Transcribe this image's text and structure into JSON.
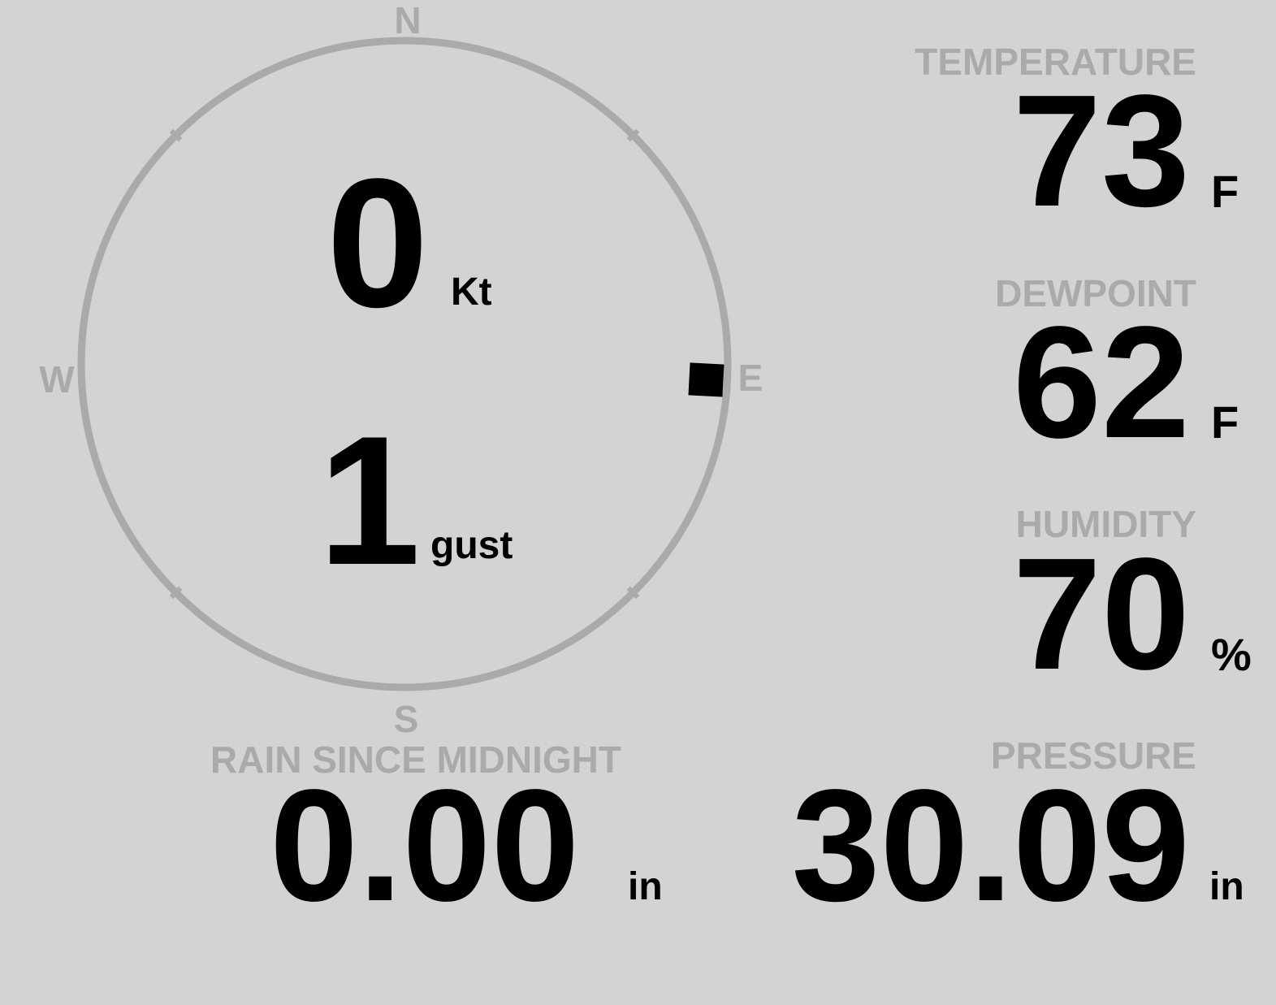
{
  "colors": {
    "background": "#d3d3d3",
    "label": "#aaaaaa",
    "value": "#000000"
  },
  "wind": {
    "compass": {
      "north": "N",
      "east": "E",
      "south": "S",
      "west": "W"
    },
    "direction_deg": 93,
    "speed": "0",
    "speed_unit": "Kt",
    "gust": "1",
    "gust_unit": "gust"
  },
  "temperature": {
    "label": "TEMPERATURE",
    "value": "73",
    "unit": "F"
  },
  "dewpoint": {
    "label": "DEWPOINT",
    "value": "62",
    "unit": "F"
  },
  "humidity": {
    "label": "HUMIDITY",
    "value": "70",
    "unit": "%"
  },
  "rain": {
    "label": "RAIN SINCE MIDNIGHT",
    "value": "0.00",
    "unit": "in"
  },
  "pressure": {
    "label": "PRESSURE",
    "value": "30.09",
    "unit": "in"
  }
}
